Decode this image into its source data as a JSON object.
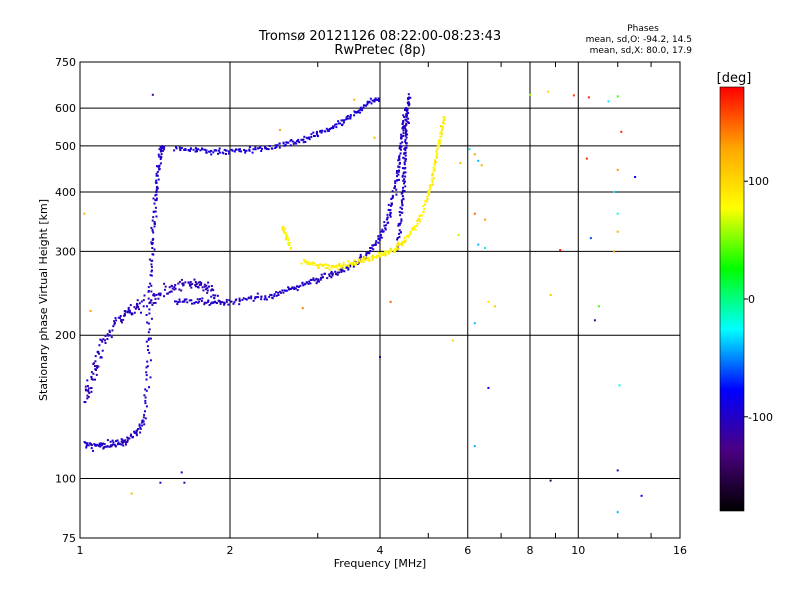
{
  "chart_data": {
    "type": "scatter",
    "title": "Tromsø 20121126 08:22:00-08:23:43",
    "subtitle": "RwPretec (8p)",
    "xlabel": "Frequency [MHz]",
    "ylabel": "Stationary phase Virtual Height [km]",
    "x_scale": "log",
    "y_scale": "log",
    "xlim": [
      1,
      16
    ],
    "ylim": [
      75,
      750
    ],
    "x_ticks": [
      1,
      2,
      4,
      6,
      8,
      10,
      16
    ],
    "x_tick_labels": [
      "1",
      "2",
      "4",
      "6",
      "8",
      "10",
      "16"
    ],
    "y_ticks": [
      75,
      100,
      200,
      300,
      400,
      500,
      600,
      750
    ],
    "y_tick_labels": [
      "75",
      "100",
      "200",
      "300",
      "400",
      "500",
      "600",
      "750"
    ],
    "grid": true,
    "phase_info": {
      "heading": "Phases",
      "line_o": "mean, sd,O: -94.2, 14.5",
      "line_x": "mean, sd,X:  80.0, 17.9"
    },
    "colorbar": {
      "label": "[deg]",
      "range": [
        -180,
        180
      ],
      "ticks": [
        100,
        0,
        -100
      ],
      "tick_labels": [
        "100",
        "0",
        "-100"
      ],
      "colormap": [
        "#000000",
        "#4b0082",
        "#0000ff",
        "#00ffff",
        "#00ff00",
        "#ffff00",
        "#ffa500",
        "#ff0000"
      ]
    },
    "traces": [
      {
        "phase": -100,
        "spread": 0.018,
        "points": [
          [
            1.02,
            118
          ],
          [
            1.08,
            117
          ],
          [
            1.12,
            118
          ],
          [
            1.18,
            118
          ],
          [
            1.24,
            120
          ],
          [
            1.3,
            125
          ],
          [
            1.35,
            133
          ],
          [
            1.37,
            170
          ],
          [
            1.38,
            220
          ],
          [
            1.39,
            280
          ],
          [
            1.4,
            330
          ],
          [
            1.42,
            380
          ],
          [
            1.43,
            430
          ],
          [
            1.45,
            480
          ],
          [
            1.47,
            500
          ]
        ]
      },
      {
        "phase": -105,
        "spread": 0.03,
        "points": [
          [
            1.02,
            145
          ],
          [
            1.05,
            160
          ],
          [
            1.08,
            175
          ],
          [
            1.12,
            195
          ],
          [
            1.18,
            215
          ],
          [
            1.25,
            225
          ],
          [
            1.32,
            230
          ],
          [
            1.4,
            238
          ],
          [
            1.5,
            250
          ],
          [
            1.6,
            255
          ],
          [
            1.7,
            258
          ],
          [
            1.8,
            250
          ],
          [
            1.9,
            240
          ]
        ]
      },
      {
        "phase": -100,
        "spread": 0.014,
        "points": [
          [
            1.55,
            235
          ],
          [
            1.7,
            235
          ],
          [
            1.85,
            234
          ],
          [
            2.0,
            235
          ],
          [
            2.2,
            238
          ],
          [
            2.4,
            242
          ],
          [
            2.6,
            248
          ],
          [
            2.8,
            255
          ],
          [
            3.0,
            262
          ],
          [
            3.2,
            268
          ],
          [
            3.4,
            275
          ],
          [
            3.6,
            285
          ],
          [
            3.8,
            298
          ],
          [
            4.0,
            320
          ],
          [
            4.15,
            350
          ],
          [
            4.25,
            390
          ],
          [
            4.35,
            440
          ],
          [
            4.4,
            490
          ],
          [
            4.45,
            540
          ],
          [
            4.5,
            600
          ]
        ]
      },
      {
        "phase": -95,
        "spread": 0.014,
        "points": [
          [
            1.55,
            495
          ],
          [
            1.7,
            490
          ],
          [
            1.85,
            485
          ],
          [
            2.0,
            488
          ],
          [
            2.2,
            490
          ],
          [
            2.4,
            495
          ],
          [
            2.6,
            505
          ],
          [
            2.8,
            515
          ],
          [
            3.0,
            530
          ],
          [
            3.2,
            545
          ],
          [
            3.4,
            565
          ],
          [
            3.6,
            590
          ],
          [
            3.8,
            615
          ],
          [
            4.0,
            630
          ]
        ]
      },
      {
        "phase": -100,
        "spread": 0.012,
        "points": [
          [
            4.35,
            300
          ],
          [
            4.4,
            350
          ],
          [
            4.45,
            400
          ],
          [
            4.48,
            450
          ],
          [
            4.5,
            500
          ],
          [
            4.52,
            550
          ],
          [
            4.55,
            600
          ],
          [
            4.58,
            640
          ]
        ]
      },
      {
        "phase": 85,
        "spread": 0.012,
        "points": [
          [
            2.8,
            285
          ],
          [
            3.0,
            280
          ],
          [
            3.2,
            278
          ],
          [
            3.4,
            280
          ],
          [
            3.6,
            285
          ],
          [
            3.8,
            290
          ],
          [
            4.0,
            295
          ],
          [
            4.2,
            300
          ],
          [
            4.4,
            310
          ],
          [
            4.6,
            325
          ],
          [
            4.8,
            350
          ],
          [
            5.0,
            390
          ],
          [
            5.1,
            430
          ],
          [
            5.2,
            480
          ],
          [
            5.3,
            530
          ],
          [
            5.4,
            580
          ]
        ]
      },
      {
        "phase": 80,
        "spread": 0.01,
        "points": [
          [
            2.55,
            340
          ],
          [
            2.6,
            320
          ],
          [
            2.65,
            305
          ]
        ]
      }
    ],
    "scatter": [
      {
        "x": 6.05,
        "y": 492,
        "phase": -30
      },
      {
        "x": 6.2,
        "y": 480,
        "phase": 130
      },
      {
        "x": 6.3,
        "y": 465,
        "phase": -40
      },
      {
        "x": 6.4,
        "y": 455,
        "phase": 120
      },
      {
        "x": 6.2,
        "y": 360,
        "phase": 150
      },
      {
        "x": 6.5,
        "y": 350,
        "phase": 130
      },
      {
        "x": 6.3,
        "y": 310,
        "phase": -40
      },
      {
        "x": 6.5,
        "y": 305,
        "phase": -30
      },
      {
        "x": 6.6,
        "y": 235,
        "phase": 90
      },
      {
        "x": 6.2,
        "y": 212,
        "phase": -40
      },
      {
        "x": 6.6,
        "y": 155,
        "phase": -80
      },
      {
        "x": 6.2,
        "y": 117,
        "phase": -40
      },
      {
        "x": 5.6,
        "y": 195,
        "phase": 100
      },
      {
        "x": 5.8,
        "y": 460,
        "phase": 120
      },
      {
        "x": 8.0,
        "y": 640,
        "phase": 60
      },
      {
        "x": 8.7,
        "y": 650,
        "phase": 100
      },
      {
        "x": 9.8,
        "y": 638,
        "phase": 160
      },
      {
        "x": 10.5,
        "y": 632,
        "phase": 170
      },
      {
        "x": 10.4,
        "y": 470,
        "phase": 170
      },
      {
        "x": 11.5,
        "y": 620,
        "phase": -30
      },
      {
        "x": 12.0,
        "y": 635,
        "phase": 40
      },
      {
        "x": 12.2,
        "y": 535,
        "phase": 170
      },
      {
        "x": 12.0,
        "y": 445,
        "phase": 130
      },
      {
        "x": 13.0,
        "y": 430,
        "phase": -80
      },
      {
        "x": 11.8,
        "y": 400,
        "phase": -30
      },
      {
        "x": 12.0,
        "y": 360,
        "phase": -20
      },
      {
        "x": 12.0,
        "y": 330,
        "phase": 120
      },
      {
        "x": 10.6,
        "y": 320,
        "phase": -60
      },
      {
        "x": 9.2,
        "y": 302,
        "phase": 170
      },
      {
        "x": 11.8,
        "y": 300,
        "phase": 130
      },
      {
        "x": 8.8,
        "y": 243,
        "phase": 110
      },
      {
        "x": 11.0,
        "y": 230,
        "phase": 40
      },
      {
        "x": 10.8,
        "y": 215,
        "phase": -120
      },
      {
        "x": 12.1,
        "y": 157,
        "phase": -20
      },
      {
        "x": 12.0,
        "y": 104,
        "phase": -100
      },
      {
        "x": 8.8,
        "y": 99,
        "phase": -150
      },
      {
        "x": 13.4,
        "y": 92,
        "phase": -80
      },
      {
        "x": 12.0,
        "y": 85,
        "phase": -40
      },
      {
        "x": 6.8,
        "y": 230,
        "phase": 110
      },
      {
        "x": 4.0,
        "y": 180,
        "phase": -110
      },
      {
        "x": 4.2,
        "y": 235,
        "phase": 150
      },
      {
        "x": 1.27,
        "y": 93,
        "phase": 120
      },
      {
        "x": 1.45,
        "y": 98,
        "phase": -100
      },
      {
        "x": 1.6,
        "y": 103,
        "phase": -100
      },
      {
        "x": 1.62,
        "y": 98,
        "phase": -110
      },
      {
        "x": 1.4,
        "y": 640,
        "phase": -120
      },
      {
        "x": 1.02,
        "y": 360,
        "phase": 120
      },
      {
        "x": 1.05,
        "y": 225,
        "phase": 130
      },
      {
        "x": 2.52,
        "y": 540,
        "phase": 130
      },
      {
        "x": 2.8,
        "y": 228,
        "phase": 140
      },
      {
        "x": 3.55,
        "y": 625,
        "phase": 120
      },
      {
        "x": 3.9,
        "y": 520,
        "phase": 120
      },
      {
        "x": 5.75,
        "y": 325,
        "phase": 60
      }
    ]
  }
}
